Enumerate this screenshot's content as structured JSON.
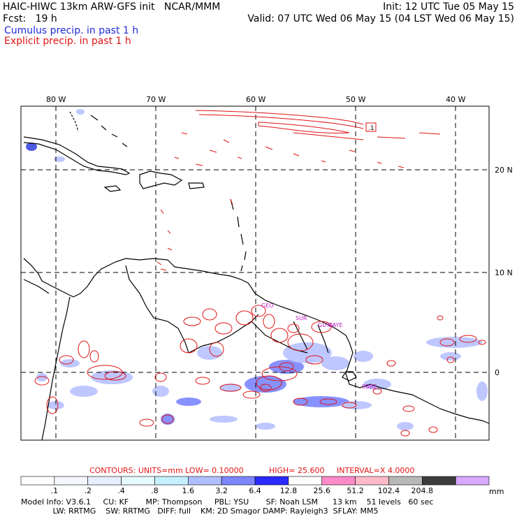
{
  "header": {
    "title": "HAIC-HIWC 13km ARW-GFS init   NCAR/MMM",
    "init": "Init: 12 UTC Tue 05 May 15",
    "fcst": "Fcst:   19 h",
    "valid": "Valid: 07 UTC Wed 06 May 15 (04 LST Wed 06 May 15)",
    "cumulus": "Cumulus precip. in past 1 h",
    "explicit": "Explicit precip. in past 1 h"
  },
  "map": {
    "lon_labels": [
      "80 W",
      "70 W",
      "60 W",
      "50 W",
      "40 W"
    ],
    "lat_labels": [
      "20 N",
      "10 N",
      "0"
    ],
    "box_label": ".1",
    "place_labels": [
      "GEO",
      "SUR",
      "GUYA",
      "CAYE",
      "SBBE"
    ],
    "colors": {
      "coast": "#000000",
      "grid": "#000000",
      "contour": "#e01414",
      "label": "#c020c0"
    }
  },
  "contours_line": {
    "contours": "CONTOURS:  UNITS=mm  LOW= 0.10000",
    "high": "HIGH=  25.600",
    "interval": "INTERVAL=X  4.0000"
  },
  "colorbar": {
    "ticks": [
      ".1",
      ".2",
      ".4",
      ".8",
      "1.6",
      "3.2",
      "6.4",
      "12.8",
      "25.6",
      "51.2",
      "102.4",
      "204.8"
    ],
    "units": "mm",
    "colors": [
      "#ffffff",
      "#f4f6ff",
      "#e6eeff",
      "#e6fbff",
      "#c6f0ff",
      "#b0bfff",
      "#7b86ff",
      "#2a2aff",
      "#ffffff",
      "#ff8ac8",
      "#ffbac8",
      "#b8b8b8",
      "#3c3c3c",
      "#d8a8ff"
    ]
  },
  "model_info": {
    "line1": "Model Info: V3.6.1     CU: KF       MP: Thompson     PBL: YSU       SF: Noah LSM      13 km    51 levels   60 sec",
    "line2": "             LW: RRTMG    SW: RRTMG   DIFF: full    KM: 2D Smagor DAMP: Rayleigh3  SFLAY: MM5"
  }
}
